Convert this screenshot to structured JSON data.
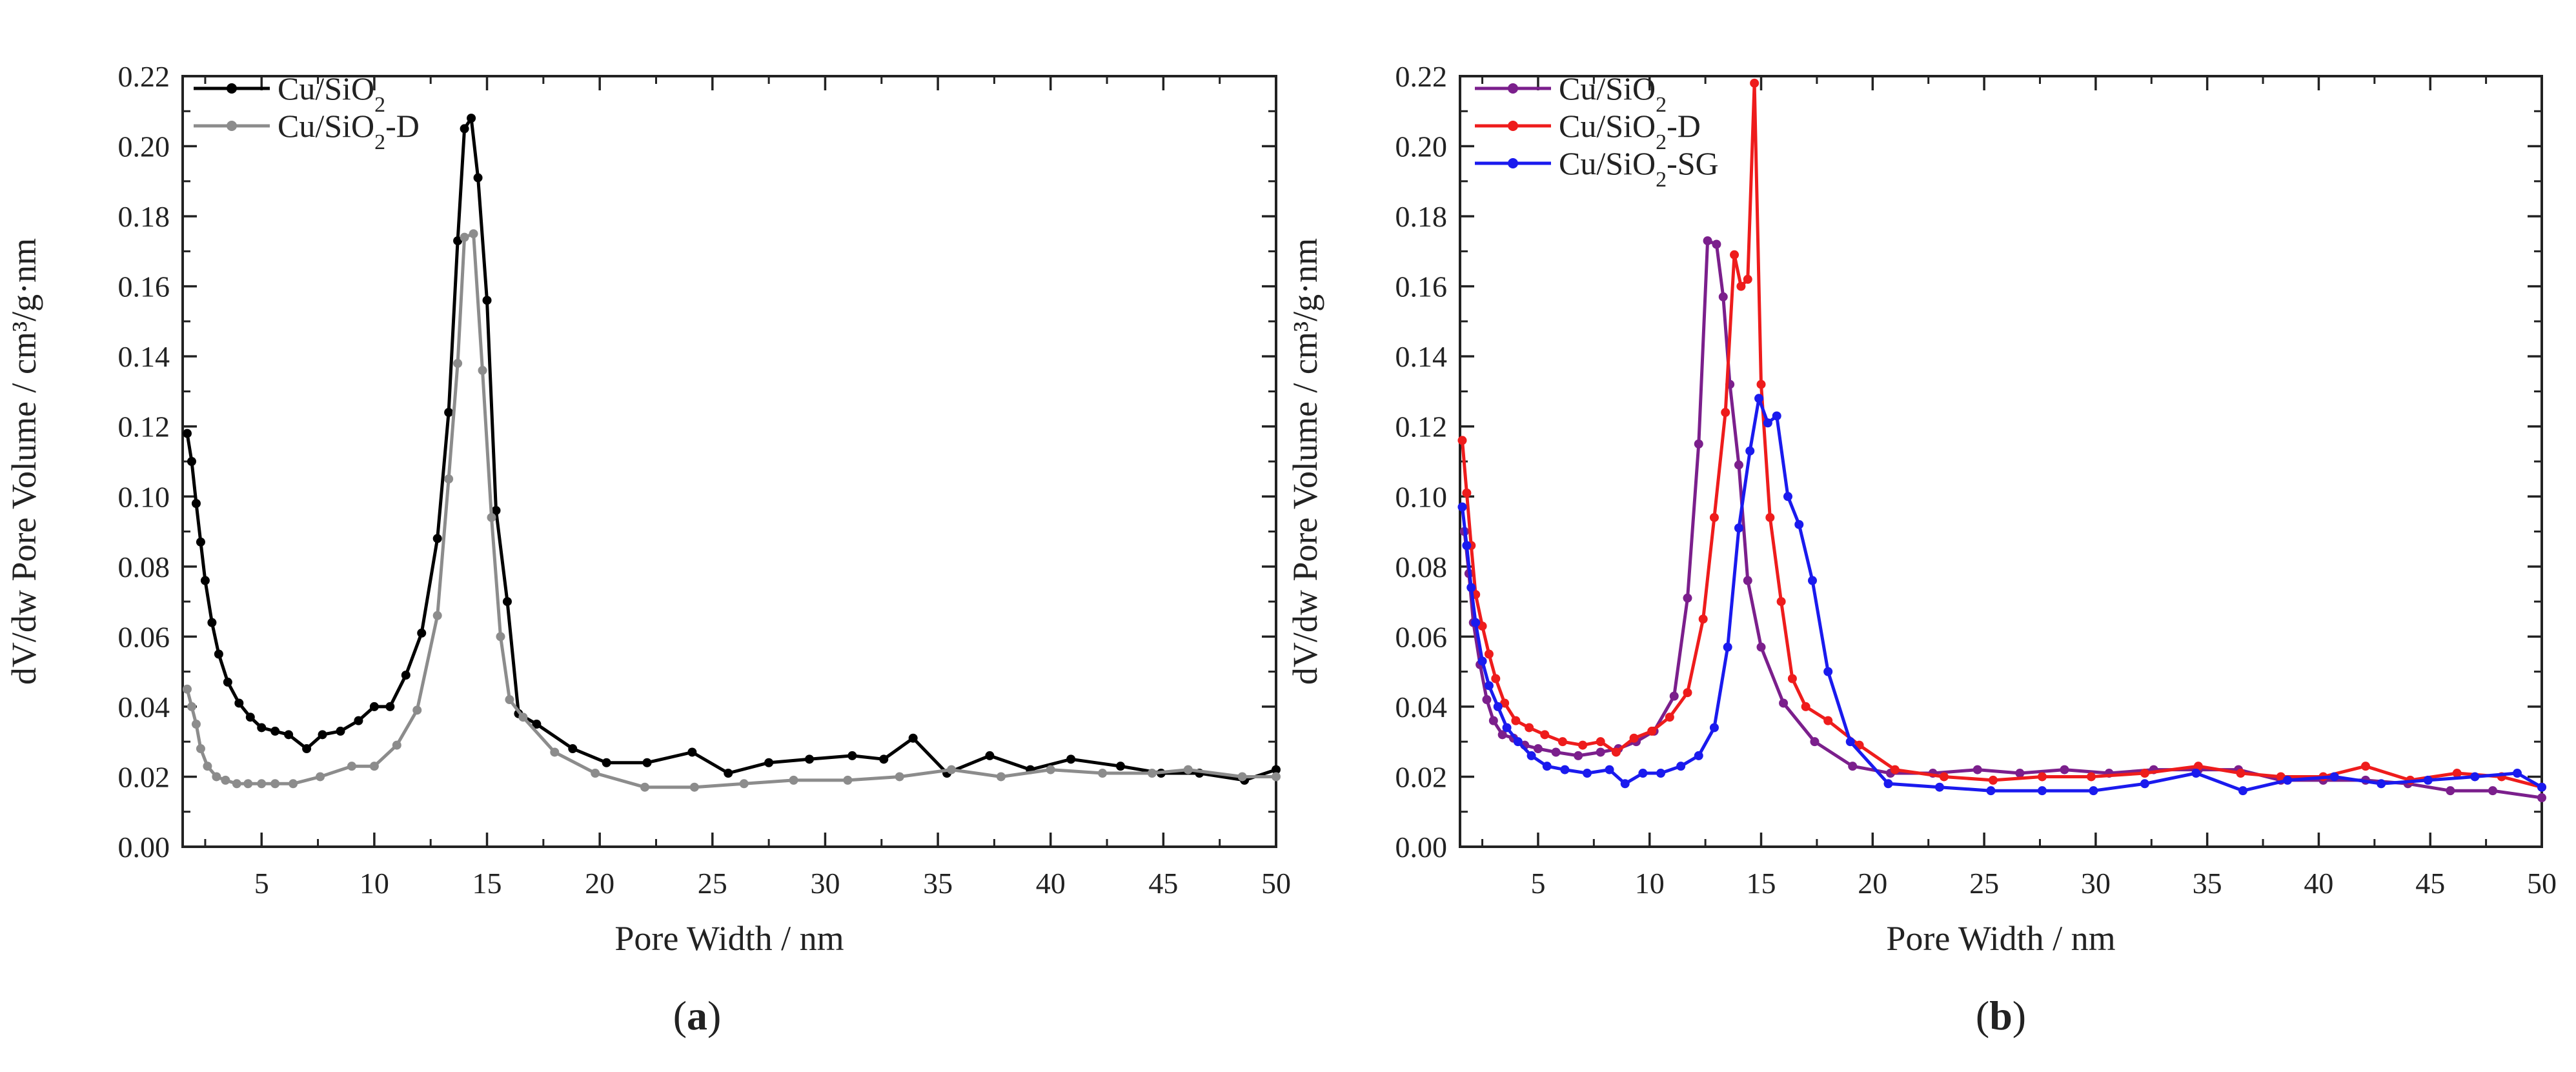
{
  "chart_data": [
    {
      "type": "line",
      "panel_label": "a",
      "xlabel": "Pore Width / nm",
      "ylabel": "dV/dw Pore Volume / cm³/g·nm",
      "xlim": [
        1.5,
        50
      ],
      "ylim": [
        0,
        0.22
      ],
      "xticks": [
        5,
        10,
        15,
        20,
        25,
        30,
        35,
        40,
        45,
        50
      ],
      "yticks": [
        0.0,
        0.02,
        0.04,
        0.06,
        0.08,
        0.1,
        0.12,
        0.14,
        0.16,
        0.18,
        0.2,
        0.22
      ],
      "grid": false,
      "legend_position": "top-left",
      "series": [
        {
          "name": "Cu/SiO2",
          "legend_base": "Cu/SiO",
          "legend_sub": "2",
          "legend_suffix": "",
          "color": "#000000",
          "x": [
            1.7,
            1.9,
            2.1,
            2.3,
            2.5,
            2.8,
            3.1,
            3.5,
            4.0,
            4.5,
            5.0,
            5.6,
            6.2,
            7.0,
            7.7,
            8.5,
            9.3,
            10.0,
            10.7,
            11.4,
            12.1,
            12.8,
            13.3,
            13.7,
            14.0,
            14.3,
            14.6,
            15.0,
            15.4,
            15.9,
            16.4,
            17.2,
            18.8,
            20.3,
            22.1,
            24.1,
            25.7,
            27.5,
            29.3,
            31.2,
            32.6,
            33.9,
            35.4,
            37.3,
            39.1,
            40.9,
            43.1,
            44.9,
            46.6,
            48.6,
            50.0
          ],
          "y": [
            0.118,
            0.11,
            0.098,
            0.087,
            0.076,
            0.064,
            0.055,
            0.047,
            0.041,
            0.037,
            0.034,
            0.033,
            0.032,
            0.028,
            0.032,
            0.033,
            0.036,
            0.04,
            0.04,
            0.049,
            0.061,
            0.088,
            0.124,
            0.173,
            0.205,
            0.208,
            0.191,
            0.156,
            0.096,
            0.07,
            0.038,
            0.035,
            0.028,
            0.024,
            0.024,
            0.027,
            0.021,
            0.024,
            0.025,
            0.026,
            0.025,
            0.031,
            0.021,
            0.026,
            0.022,
            0.025,
            0.023,
            0.021,
            0.021,
            0.019,
            0.022
          ]
        },
        {
          "name": "Cu/SiO2-D",
          "legend_base": "Cu/SiO",
          "legend_sub": "2",
          "legend_suffix": "-D",
          "color": "#8c8c8c",
          "x": [
            1.7,
            1.9,
            2.1,
            2.3,
            2.6,
            3.0,
            3.4,
            3.9,
            4.4,
            5.0,
            5.6,
            6.4,
            7.6,
            9.0,
            10.0,
            11.0,
            11.9,
            12.8,
            13.3,
            13.7,
            14.0,
            14.4,
            14.8,
            15.2,
            15.6,
            16.0,
            16.6,
            18.0,
            19.8,
            22.0,
            24.2,
            26.4,
            28.6,
            31.0,
            33.3,
            35.6,
            37.8,
            40.0,
            42.3,
            44.5,
            46.1,
            48.5,
            50.0
          ],
          "y": [
            0.045,
            0.04,
            0.035,
            0.028,
            0.023,
            0.02,
            0.019,
            0.018,
            0.018,
            0.018,
            0.018,
            0.018,
            0.02,
            0.023,
            0.023,
            0.029,
            0.039,
            0.066,
            0.105,
            0.138,
            0.174,
            0.175,
            0.136,
            0.094,
            0.06,
            0.042,
            0.037,
            0.027,
            0.021,
            0.017,
            0.017,
            0.018,
            0.019,
            0.019,
            0.02,
            0.022,
            0.02,
            0.022,
            0.021,
            0.021,
            0.022,
            0.02,
            0.02
          ]
        }
      ]
    },
    {
      "type": "line",
      "panel_label": "b",
      "xlabel": "Pore Width / nm",
      "ylabel": "dV/dw Pore Volume / cm³/g·nm",
      "xlim": [
        1.5,
        50
      ],
      "ylim": [
        0,
        0.22
      ],
      "xticks": [
        5,
        10,
        15,
        20,
        25,
        30,
        35,
        40,
        45,
        50
      ],
      "yticks": [
        0.0,
        0.02,
        0.04,
        0.06,
        0.08,
        0.1,
        0.12,
        0.14,
        0.16,
        0.18,
        0.2,
        0.22
      ],
      "grid": false,
      "legend_position": "top-left",
      "series": [
        {
          "name": "Cu/SiO2",
          "legend_base": "Cu/SiO",
          "legend_sub": "2",
          "legend_suffix": "",
          "color": "#7b1f8c",
          "x": [
            1.7,
            1.9,
            2.1,
            2.4,
            2.7,
            3.0,
            3.4,
            3.9,
            4.4,
            5.0,
            5.8,
            6.8,
            7.8,
            8.6,
            9.4,
            10.2,
            11.1,
            11.7,
            12.2,
            12.6,
            13.0,
            13.3,
            13.6,
            14.0,
            14.4,
            15.0,
            16.0,
            17.4,
            19.1,
            20.8,
            22.7,
            24.7,
            26.6,
            28.6,
            30.6,
            32.6,
            34.6,
            36.4,
            38.3,
            40.2,
            42.1,
            44.0,
            45.9,
            47.8,
            50.0
          ],
          "y": [
            0.09,
            0.078,
            0.064,
            0.052,
            0.042,
            0.036,
            0.032,
            0.031,
            0.029,
            0.028,
            0.027,
            0.026,
            0.027,
            0.028,
            0.03,
            0.033,
            0.043,
            0.071,
            0.115,
            0.173,
            0.172,
            0.157,
            0.132,
            0.109,
            0.076,
            0.057,
            0.041,
            0.03,
            0.023,
            0.021,
            0.021,
            0.022,
            0.021,
            0.022,
            0.021,
            0.022,
            0.022,
            0.022,
            0.019,
            0.019,
            0.019,
            0.018,
            0.016,
            0.016,
            0.014
          ]
        },
        {
          "name": "Cu/SiO2-D",
          "legend_base": "Cu/SiO",
          "legend_sub": "2",
          "legend_suffix": "-D",
          "color": "#ee1c1c",
          "x": [
            1.6,
            1.8,
            2.0,
            2.2,
            2.5,
            2.8,
            3.1,
            3.5,
            4.0,
            4.6,
            5.3,
            6.1,
            7.0,
            7.8,
            8.5,
            9.3,
            10.1,
            10.9,
            11.7,
            12.4,
            12.9,
            13.4,
            13.8,
            14.1,
            14.4,
            14.7,
            15.0,
            15.4,
            15.9,
            16.4,
            17.0,
            18.0,
            19.4,
            21.0,
            23.2,
            25.4,
            27.6,
            29.8,
            32.2,
            34.6,
            36.5,
            38.3,
            40.2,
            42.1,
            44.1,
            46.2,
            48.2,
            50.0
          ],
          "y": [
            0.116,
            0.101,
            0.086,
            0.072,
            0.063,
            0.055,
            0.048,
            0.041,
            0.036,
            0.034,
            0.032,
            0.03,
            0.029,
            0.03,
            0.027,
            0.031,
            0.033,
            0.037,
            0.044,
            0.065,
            0.094,
            0.124,
            0.169,
            0.16,
            0.162,
            0.218,
            0.132,
            0.094,
            0.07,
            0.048,
            0.04,
            0.036,
            0.029,
            0.022,
            0.02,
            0.019,
            0.02,
            0.02,
            0.021,
            0.023,
            0.021,
            0.02,
            0.02,
            0.023,
            0.019,
            0.021,
            0.02,
            0.017
          ]
        },
        {
          "name": "Cu/SiO2-SG",
          "legend_base": "Cu/SiO",
          "legend_sub": "2",
          "legend_suffix": "-SG",
          "color": "#1a1aee",
          "x": [
            1.6,
            1.8,
            2.0,
            2.2,
            2.5,
            2.8,
            3.2,
            3.6,
            4.1,
            4.7,
            5.4,
            6.2,
            7.2,
            8.2,
            8.9,
            9.7,
            10.5,
            11.4,
            12.2,
            12.9,
            13.5,
            14.0,
            14.5,
            14.9,
            15.3,
            15.7,
            16.2,
            16.7,
            17.3,
            18.0,
            19.0,
            20.7,
            23.0,
            25.3,
            27.6,
            29.9,
            32.2,
            34.5,
            36.6,
            38.6,
            40.7,
            42.8,
            44.9,
            47.0,
            48.9,
            50.0
          ],
          "y": [
            0.097,
            0.086,
            0.074,
            0.064,
            0.053,
            0.046,
            0.04,
            0.034,
            0.03,
            0.026,
            0.023,
            0.022,
            0.021,
            0.022,
            0.018,
            0.021,
            0.021,
            0.023,
            0.026,
            0.034,
            0.057,
            0.091,
            0.113,
            0.128,
            0.121,
            0.123,
            0.1,
            0.092,
            0.076,
            0.05,
            0.03,
            0.018,
            0.017,
            0.016,
            0.016,
            0.016,
            0.018,
            0.021,
            0.016,
            0.019,
            0.02,
            0.018,
            0.019,
            0.02,
            0.021,
            0.017
          ]
        }
      ]
    }
  ]
}
